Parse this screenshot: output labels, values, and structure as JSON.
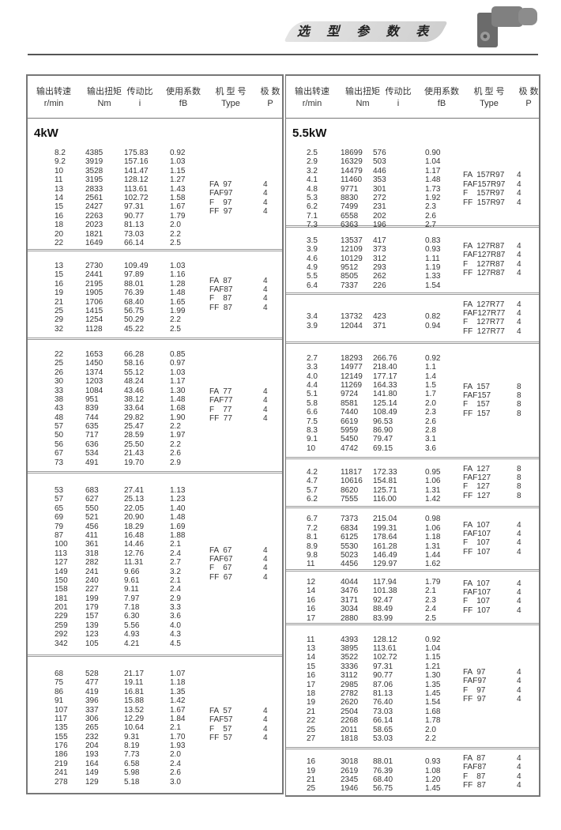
{
  "header": {
    "title": "选 型 参 数 表"
  },
  "columns": [
    {
      "cn": "输出转速",
      "en": "r/min"
    },
    {
      "cn": "输出扭矩",
      "en": "Nm"
    },
    {
      "cn": "传动比",
      "en": "i"
    },
    {
      "cn": "使用系数",
      "en": "fB"
    },
    {
      "cn": "机 型 号",
      "en": "Type"
    },
    {
      "cn": "极  数",
      "en": "P"
    }
  ],
  "left": {
    "sections": [
      {
        "power": "4kW",
        "types": [
          "FA  97",
          "FAF97",
          "F    97",
          "FF  97"
        ],
        "poles": [
          "4",
          "4",
          "4",
          "4"
        ],
        "rows": [
          [
            "8.2",
            "4385",
            "175.83",
            "0.92"
          ],
          [
            "9.2",
            "3919",
            "157.16",
            "1.03"
          ],
          [
            "10",
            "3528",
            "141.47",
            "1.15"
          ],
          [
            "11",
            "3195",
            "128.12",
            "1.27"
          ],
          [
            "13",
            "2833",
            "113.61",
            "1.43"
          ],
          [
            "14",
            "2561",
            "102.72",
            "1.58"
          ],
          [
            "15",
            "2427",
            "97.31",
            "1.67"
          ],
          [
            "16",
            "2263",
            "90.77",
            "1.79"
          ],
          [
            "18",
            "2023",
            "81.13",
            "2.0"
          ],
          [
            "20",
            "1821",
            "73.03",
            "2.2"
          ],
          [
            "22",
            "1649",
            "66.14",
            "2.5"
          ]
        ]
      },
      {
        "types": [
          "FA  87",
          "FAF87",
          "F    87",
          "FF  87"
        ],
        "poles": [
          "4",
          "4",
          "4",
          "4"
        ],
        "rows": [
          [
            "13",
            "2730",
            "109.49",
            "1.03"
          ],
          [
            "15",
            "2441",
            "97.89",
            "1.16"
          ],
          [
            "16",
            "2195",
            "88.01",
            "1.28"
          ],
          [
            "19",
            "1905",
            "76.39",
            "1.48"
          ],
          [
            "21",
            "1706",
            "68.40",
            "1.65"
          ],
          [
            "25",
            "1415",
            "56.75",
            "1.99"
          ],
          [
            "29",
            "1254",
            "50.29",
            "2.2"
          ],
          [
            "32",
            "1128",
            "45.22",
            "2.5"
          ]
        ]
      },
      {
        "types": [
          "FA  77",
          "FAF77",
          "F    77",
          "FF  77"
        ],
        "poles": [
          "4",
          "4",
          "4",
          "4"
        ],
        "rows": [
          [
            "22",
            "1653",
            "66.28",
            "0.85"
          ],
          [
            "25",
            "1450",
            "58.16",
            "0.97"
          ],
          [
            "26",
            "1374",
            "55.12",
            "1.03"
          ],
          [
            "30",
            "1203",
            "48.24",
            "1.17"
          ],
          [
            "33",
            "1084",
            "43.46",
            "1.30"
          ],
          [
            "38",
            "951",
            "38.12",
            "1.48"
          ],
          [
            "43",
            "839",
            "33.64",
            "1.68"
          ],
          [
            "48",
            "744",
            "29.82",
            "1.90"
          ],
          [
            "57",
            "635",
            "25.47",
            "2.2"
          ],
          [
            "50",
            "717",
            "28.59",
            "1.97"
          ],
          [
            "56",
            "636",
            "25.50",
            "2.2"
          ],
          [
            "67",
            "534",
            "21.43",
            "2.6"
          ],
          [
            "73",
            "491",
            "19.70",
            "2.9"
          ]
        ]
      },
      {
        "types": [
          "FA  67",
          "FAF67",
          "F    67",
          "FF  67"
        ],
        "poles": [
          "4",
          "4",
          "4",
          "4"
        ],
        "rows": [
          [
            "53",
            "683",
            "27.41",
            "1.13"
          ],
          [
            "57",
            "627",
            "25.13",
            "1.23"
          ],
          [
            "65",
            "550",
            "22.05",
            "1.40"
          ],
          [
            "69",
            "521",
            "20.90",
            "1.48"
          ],
          [
            "79",
            "456",
            "18.29",
            "1.69"
          ],
          [
            "87",
            "411",
            "16.48",
            "1.88"
          ],
          [
            "100",
            "361",
            "14.46",
            "2.1"
          ],
          [
            "113",
            "318",
            "12.76",
            "2.4"
          ],
          [
            "127",
            "282",
            "11.31",
            "2.7"
          ],
          [
            "149",
            "241",
            "9.66",
            "3.2"
          ],
          [
            "150",
            "240",
            "9.61",
            "2.1"
          ],
          [
            "158",
            "227",
            "9.11",
            "2.4"
          ],
          [
            "181",
            "199",
            "7.97",
            "2.9"
          ],
          [
            "201",
            "179",
            "7.18",
            "3.3"
          ],
          [
            "229",
            "157",
            "6.30",
            "3.6"
          ],
          [
            "259",
            "139",
            "5.56",
            "4.0"
          ],
          [
            "292",
            "123",
            "4.93",
            "4.3"
          ],
          [
            "342",
            "105",
            "4.21",
            "4.5"
          ]
        ]
      },
      {
        "types": [
          "FA  57",
          "FAF57",
          "F    57",
          "FF  57"
        ],
        "poles": [
          "4",
          "4",
          "4",
          "4"
        ],
        "rows": [
          [
            "68",
            "528",
            "21.17",
            "1.07"
          ],
          [
            "75",
            "477",
            "19.11",
            "1.18"
          ],
          [
            "86",
            "419",
            "16.81",
            "1.35"
          ],
          [
            "91",
            "396",
            "15.88",
            "1.42"
          ],
          [
            "107",
            "337",
            "13.52",
            "1.67"
          ],
          [
            "117",
            "306",
            "12.29",
            "1.84"
          ],
          [
            "135",
            "265",
            "10.64",
            "2.1"
          ],
          [
            "155",
            "232",
            "9.31",
            "1.70"
          ],
          [
            "176",
            "204",
            "8.19",
            "1.93"
          ],
          [
            "186",
            "193",
            "7.73",
            "2.0"
          ],
          [
            "219",
            "164",
            "6.58",
            "2.4"
          ],
          [
            "241",
            "149",
            "5.98",
            "2.6"
          ],
          [
            "278",
            "129",
            "5.18",
            "3.0"
          ]
        ]
      }
    ]
  },
  "right": {
    "sections": [
      {
        "power": "5.5kW",
        "types": [
          "FA  157R97",
          "FAF157R97",
          "F    157R97",
          "FF  157R97"
        ],
        "poles": [
          "4",
          "4",
          "4",
          "4"
        ],
        "rows": [
          [
            "2.5",
            "18699",
            "576",
            "0.90"
          ],
          [
            "2.9",
            "16329",
            "503",
            "1.04"
          ],
          [
            "3.2",
            "14479",
            "446",
            "1.17"
          ],
          [
            "4.1",
            "11460",
            "353",
            "1.48"
          ],
          [
            "4.8",
            "9771",
            "301",
            "1.73"
          ],
          [
            "5.3",
            "8830",
            "272",
            "1.92"
          ],
          [
            "6.2",
            "7499",
            "231",
            "2.3"
          ],
          [
            "7.1",
            "6558",
            "202",
            "2.6"
          ],
          [
            "7.3",
            "6363",
            "196",
            "2.7"
          ]
        ]
      },
      {
        "types": [
          "FA  127R87",
          "FAF127R87",
          "F    127R87",
          "FF  127R87"
        ],
        "poles": [
          "4",
          "4",
          "4",
          "4"
        ],
        "rows": [
          [
            "3.5",
            "13537",
            "417",
            "0.83"
          ],
          [
            "3.9",
            "12109",
            "373",
            "0.93"
          ],
          [
            "4.6",
            "10129",
            "312",
            "1.11"
          ],
          [
            "4.9",
            "9512",
            "293",
            "1.19"
          ],
          [
            "5.5",
            "8505",
            "262",
            "1.33"
          ],
          [
            "6.4",
            "7337",
            "226",
            "1.54"
          ]
        ]
      },
      {
        "types": [
          "FA  127R77",
          "FAF127R77",
          "F    127R77",
          "FF  127R77"
        ],
        "poles": [
          "4",
          "4",
          "4",
          "4"
        ],
        "rows": [
          [
            "3.4",
            "13732",
            "423",
            "0.82"
          ],
          [
            "3.9",
            "12044",
            "371",
            "0.94"
          ]
        ]
      },
      {
        "types": [
          "FA  157",
          "FAF157",
          "F    157",
          "FF  157"
        ],
        "poles": [
          "8",
          "8",
          "8",
          "8"
        ],
        "rows": [
          [
            "2.7",
            "18293",
            "266.76",
            "0.92"
          ],
          [
            "3.3",
            "14977",
            "218.40",
            "1.1"
          ],
          [
            "4.0",
            "12149",
            "177.17",
            "1.4"
          ],
          [
            "4.4",
            "11269",
            "164.33",
            "1.5"
          ],
          [
            "5.1",
            "9724",
            "141.80",
            "1.7"
          ],
          [
            "5.8",
            "8581",
            "125.14",
            "2.0"
          ],
          [
            "6.6",
            "7440",
            "108.49",
            "2.3"
          ],
          [
            "7.5",
            "6619",
            "96.53",
            "2.6"
          ],
          [
            "8.3",
            "5959",
            "86.90",
            "2.8"
          ],
          [
            "9.1",
            "5450",
            "79.47",
            "3.1"
          ],
          [
            "10",
            "4742",
            "69.15",
            "3.6"
          ]
        ]
      },
      {
        "types": [
          "FA  127",
          "FAF127",
          "F    127",
          "FF  127"
        ],
        "poles": [
          "8",
          "8",
          "8",
          "8"
        ],
        "rows": [
          [
            "4.2",
            "11817",
            "172.33",
            "0.95"
          ],
          [
            "4.7",
            "10616",
            "154.81",
            "1.06"
          ],
          [
            "5.7",
            "8620",
            "125.71",
            "1.31"
          ],
          [
            "6.2",
            "7555",
            "116.00",
            "1.42"
          ]
        ]
      },
      {
        "types": [
          "FA  107",
          "FAF107",
          "F    107",
          "FF  107"
        ],
        "poles": [
          "4",
          "4",
          "4",
          "4"
        ],
        "rows": [
          [
            "6.7",
            "7373",
            "215.04",
            "0.98"
          ],
          [
            "7.2",
            "6834",
            "199.31",
            "1.06"
          ],
          [
            "8.1",
            "6125",
            "178.64",
            "1.18"
          ],
          [
            "8.9",
            "5530",
            "161.28",
            "1.31"
          ],
          [
            "9.8",
            "5023",
            "146.49",
            "1.44"
          ],
          [
            "11",
            "4456",
            "129.97",
            "1.62"
          ]
        ]
      },
      {
        "types": [
          "FA  107",
          "FAF107",
          "F    107",
          "FF  107"
        ],
        "poles": [
          "4",
          "4",
          "4",
          "4"
        ],
        "rows": [
          [
            "12",
            "4044",
            "117.94",
            "1.79"
          ],
          [
            "14",
            "3476",
            "101.38",
            "2.1"
          ],
          [
            "16",
            "3171",
            "92.47",
            "2.3"
          ],
          [
            "16",
            "3034",
            "88.49",
            "2.4"
          ],
          [
            "17",
            "2880",
            "83.99",
            "2.5"
          ]
        ]
      },
      {
        "types": [
          "FA  97",
          "FAF97",
          "F    97",
          "FF  97"
        ],
        "poles": [
          "4",
          "4",
          "4",
          "4"
        ],
        "rows": [
          [
            "11",
            "4393",
            "128.12",
            "0.92"
          ],
          [
            "13",
            "3895",
            "113.61",
            "1.04"
          ],
          [
            "14",
            "3522",
            "102.72",
            "1.15"
          ],
          [
            "15",
            "3336",
            "97.31",
            "1.21"
          ],
          [
            "16",
            "3112",
            "90.77",
            "1.30"
          ],
          [
            "17",
            "2985",
            "87.06",
            "1.35"
          ],
          [
            "18",
            "2782",
            "81.13",
            "1.45"
          ],
          [
            "19",
            "2620",
            "76.40",
            "1.54"
          ],
          [
            "21",
            "2504",
            "73.03",
            "1.68"
          ],
          [
            "22",
            "2268",
            "66.14",
            "1.78"
          ],
          [
            "25",
            "2011",
            "58.65",
            "2.0"
          ],
          [
            "27",
            "1818",
            "53.03",
            "2.2"
          ]
        ]
      },
      {
        "types": [
          "FA  87",
          "FAF87",
          "F    87",
          "FF  87"
        ],
        "poles": [
          "4",
          "4",
          "4",
          "4"
        ],
        "rows": [
          [
            "16",
            "3018",
            "88.01",
            "0.93"
          ],
          [
            "19",
            "2619",
            "76.39",
            "1.08"
          ],
          [
            "21",
            "2345",
            "68.40",
            "1.20"
          ],
          [
            "25",
            "1946",
            "56.75",
            "1.45"
          ]
        ]
      }
    ]
  }
}
